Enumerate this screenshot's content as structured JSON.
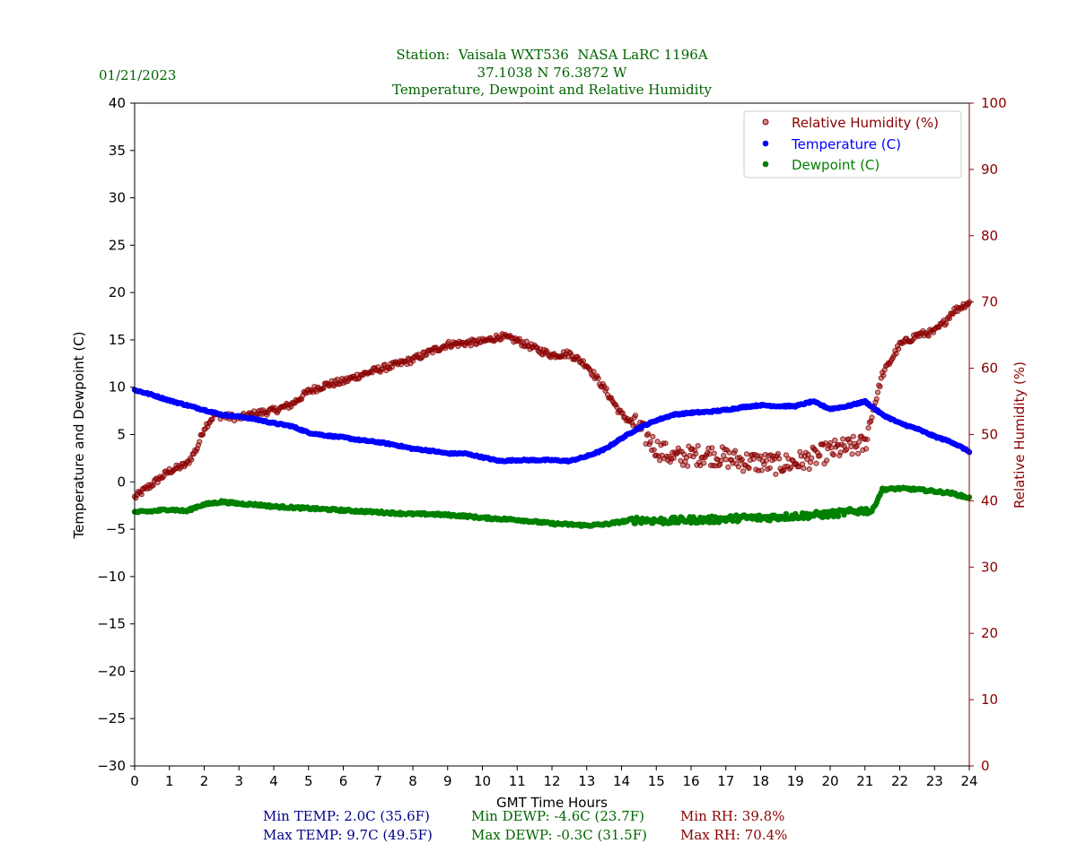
{
  "date_label": "01/21/2023",
  "title_lines": [
    "Station:  Vaisala WXT536  NASA LaRC 1196A",
    "37.1038 N 76.3872 W",
    "Temperature, Dewpoint and Relative Humidity"
  ],
  "colors": {
    "temperature": "#0000ff",
    "dewpoint": "#008000",
    "rh": "#8b0000",
    "title": "#006400",
    "stats_temp": "#00008b",
    "stats_dewp": "#006400",
    "stats_rh": "#8b0000"
  },
  "stats": {
    "min_temp": "Min TEMP: 2.0C (35.6F)",
    "max_temp": "Max TEMP: 9.7C (49.5F)",
    "min_dewp": "Min DEWP: -4.6C (23.7F)",
    "max_dewp": "Max DEWP: -0.3C (31.5F)",
    "min_rh": "Min RH: 39.8%",
    "max_rh": "Max RH: 70.4%"
  },
  "chart_data": {
    "type": "scatter",
    "xlabel": "GMT Time Hours",
    "ylabel_left": "Temperature and Dewpoint (C)",
    "ylabel_right": "Relative Humidity (%)",
    "xlim": [
      0,
      24
    ],
    "ylim_left": [
      -30,
      40
    ],
    "ylim_right": [
      0,
      100
    ],
    "x_ticks": [
      0,
      1,
      2,
      3,
      4,
      5,
      6,
      7,
      8,
      9,
      10,
      11,
      12,
      13,
      14,
      15,
      16,
      17,
      18,
      19,
      20,
      21,
      22,
      23,
      24
    ],
    "y_ticks_left": [
      -30,
      -25,
      -20,
      -15,
      -10,
      -5,
      0,
      5,
      10,
      15,
      20,
      25,
      30,
      35,
      40
    ],
    "y_ticks_right": [
      0,
      10,
      20,
      30,
      40,
      50,
      60,
      70,
      80,
      90,
      100
    ],
    "legend": {
      "placement": "top-right",
      "entries": [
        "Relative Humidity (%)",
        "Temperature (C)",
        "Dewpoint (C)"
      ]
    },
    "series": [
      {
        "name": "Relative Humidity (%)",
        "axis": "right",
        "x": [
          0,
          0.5,
          1,
          1.5,
          1.8,
          2,
          2.3,
          2.5,
          3,
          3.5,
          4,
          4.5,
          5,
          5.5,
          6,
          6.5,
          7,
          7.5,
          8,
          8.5,
          9,
          9.5,
          10,
          10.5,
          11,
          11.5,
          12,
          12.5,
          13,
          13.5,
          14,
          14.5,
          15,
          15.5,
          16,
          16.5,
          17,
          17.5,
          18,
          18.5,
          19,
          19.5,
          20,
          20.5,
          21,
          21.2,
          21.5,
          22,
          22.5,
          23,
          23.3,
          23.5,
          24
        ],
        "values": [
          40.5,
          42.5,
          44.5,
          45.5,
          48,
          51,
          53,
          52.8,
          52.5,
          53.2,
          53.6,
          54.5,
          56.5,
          57.5,
          58,
          59,
          59.8,
          60.5,
          61.3,
          62.5,
          63.6,
          63.8,
          64,
          64.8,
          64.2,
          63,
          62,
          62.2,
          60.5,
          57,
          53,
          51,
          48,
          46.5,
          46.8,
          47,
          46.5,
          46,
          45.8,
          45.5,
          45.8,
          46.5,
          47.5,
          48,
          48.5,
          53,
          59,
          63.5,
          65,
          65.5,
          67,
          68.5,
          70
        ]
      },
      {
        "name": "Temperature (C)",
        "axis": "left",
        "x": [
          0,
          0.5,
          1,
          1.5,
          2,
          2.5,
          3,
          3.5,
          4,
          4.5,
          5,
          5.5,
          6,
          6.5,
          7,
          7.5,
          8,
          8.5,
          9,
          9.5,
          10,
          10.5,
          11,
          11.5,
          12,
          12.5,
          13,
          13.5,
          14,
          14.5,
          15,
          15.5,
          16,
          16.5,
          17,
          17.5,
          18,
          18.5,
          19,
          19.5,
          20,
          20.5,
          21,
          21.5,
          22,
          22.5,
          23,
          23.5,
          24
        ],
        "values": [
          9.7,
          9.2,
          8.6,
          8.1,
          7.6,
          7.1,
          6.9,
          6.6,
          6.2,
          5.9,
          5.2,
          4.9,
          4.7,
          4.4,
          4.2,
          3.9,
          3.5,
          3.3,
          3.0,
          3.0,
          2.6,
          2.2,
          2.3,
          2.3,
          2.3,
          2.2,
          2.7,
          3.4,
          4.6,
          5.7,
          6.5,
          7.1,
          7.3,
          7.4,
          7.6,
          7.9,
          8.1,
          8.0,
          8.0,
          8.5,
          7.7,
          8.0,
          8.5,
          7.1,
          6.2,
          5.6,
          4.8,
          4.2,
          3.2
        ]
      },
      {
        "name": "Dewpoint (C)",
        "axis": "left",
        "x": [
          0,
          0.5,
          1,
          1.5,
          1.8,
          2,
          2.5,
          3,
          3.5,
          4,
          4.5,
          5,
          5.5,
          6,
          6.5,
          7,
          7.5,
          8,
          8.5,
          9,
          9.5,
          10,
          10.5,
          11,
          11.5,
          12,
          12.5,
          13,
          13.5,
          14,
          14.5,
          15,
          15.5,
          16,
          16.5,
          17,
          17.5,
          18,
          18.5,
          19,
          19.5,
          20,
          20.5,
          21,
          21.2,
          21.5,
          22,
          22.5,
          23,
          23.5,
          24
        ],
        "values": [
          -3.2,
          -3.1,
          -2.9,
          -3.1,
          -2.6,
          -2.4,
          -2.1,
          -2.3,
          -2.4,
          -2.6,
          -2.7,
          -2.8,
          -2.9,
          -3.0,
          -3.1,
          -3.2,
          -3.3,
          -3.4,
          -3.4,
          -3.5,
          -3.6,
          -3.8,
          -3.9,
          -4.0,
          -4.2,
          -4.4,
          -4.5,
          -4.6,
          -4.5,
          -4.2,
          -4.0,
          -4.1,
          -4.1,
          -4.0,
          -4.0,
          -3.9,
          -3.8,
          -3.8,
          -3.7,
          -3.6,
          -3.5,
          -3.4,
          -3.2,
          -3.0,
          -3.1,
          -0.8,
          -0.7,
          -0.8,
          -1.0,
          -1.2,
          -1.7
        ]
      }
    ]
  }
}
